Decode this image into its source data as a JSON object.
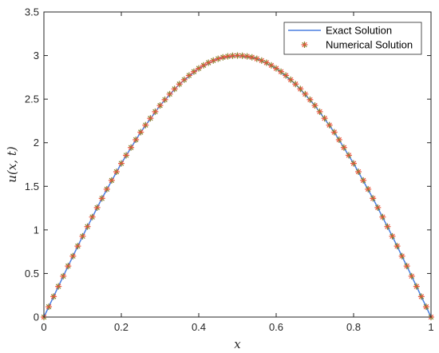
{
  "chart_data": {
    "type": "line",
    "xlabel": "x",
    "ylabel": "u(x, t)",
    "xlim": [
      0,
      1
    ],
    "ylim": [
      0,
      3.5
    ],
    "x_ticks": [
      "0",
      "0.2",
      "0.4",
      "0.6",
      "0.8",
      "1"
    ],
    "y_ticks": [
      "0",
      "0.5",
      "1",
      "1.5",
      "2",
      "2.5",
      "3",
      "3.5"
    ],
    "grid": false,
    "legend_position": "top-right",
    "series": [
      {
        "name": "Exact Solution",
        "style": "line",
        "color": "#4a7fe0",
        "x": [
          0,
          0.05,
          0.1,
          0.15,
          0.2,
          0.25,
          0.3,
          0.35,
          0.4,
          0.45,
          0.5,
          0.55,
          0.6,
          0.65,
          0.7,
          0.75,
          0.8,
          0.85,
          0.9,
          0.95,
          1
        ],
        "y": [
          0,
          0.469,
          0.927,
          1.362,
          1.763,
          2.121,
          2.427,
          2.673,
          2.853,
          2.963,
          3.0,
          2.963,
          2.853,
          2.673,
          2.427,
          2.121,
          1.763,
          1.362,
          0.927,
          0.469,
          0
        ]
      },
      {
        "name": "Numerical Solution",
        "style": "asterisk-markers",
        "color": "#8b7d2a",
        "accent_color": "#e8543c",
        "x": [
          0,
          0.0125,
          0.025,
          0.0375,
          0.05,
          0.0625,
          0.075,
          0.0875,
          0.1,
          0.1125,
          0.125,
          0.1375,
          0.15,
          0.1625,
          0.175,
          0.1875,
          0.2,
          0.2125,
          0.225,
          0.2375,
          0.25,
          0.2625,
          0.275,
          0.2875,
          0.3,
          0.3125,
          0.325,
          0.3375,
          0.35,
          0.3625,
          0.375,
          0.3875,
          0.4,
          0.4125,
          0.425,
          0.4375,
          0.45,
          0.4625,
          0.475,
          0.4875,
          0.5,
          0.5125,
          0.525,
          0.5375,
          0.55,
          0.5625,
          0.575,
          0.5875,
          0.6,
          0.6125,
          0.625,
          0.6375,
          0.65,
          0.6625,
          0.675,
          0.6875,
          0.7,
          0.7125,
          0.725,
          0.7375,
          0.75,
          0.7625,
          0.775,
          0.7875,
          0.8,
          0.8125,
          0.825,
          0.8375,
          0.85,
          0.8625,
          0.875,
          0.8875,
          0.9,
          0.9125,
          0.925,
          0.9375,
          0.95,
          0.9625,
          0.975,
          0.9875,
          1
        ],
        "y": [
          0,
          0.118,
          0.235,
          0.352,
          0.469,
          0.585,
          0.699,
          0.814,
          0.927,
          1.038,
          1.148,
          1.256,
          1.362,
          1.467,
          1.568,
          1.667,
          1.763,
          1.856,
          1.945,
          2.034,
          2.121,
          2.202,
          2.28,
          2.356,
          2.427,
          2.494,
          2.558,
          2.617,
          2.673,
          2.723,
          2.772,
          2.815,
          2.853,
          2.888,
          2.918,
          2.943,
          2.963,
          2.98,
          2.991,
          2.998,
          3.0,
          2.998,
          2.991,
          2.98,
          2.963,
          2.943,
          2.918,
          2.888,
          2.853,
          2.815,
          2.772,
          2.723,
          2.673,
          2.617,
          2.558,
          2.494,
          2.427,
          2.356,
          2.28,
          2.202,
          2.121,
          2.034,
          1.945,
          1.856,
          1.763,
          1.667,
          1.568,
          1.467,
          1.362,
          1.256,
          1.148,
          1.038,
          0.927,
          0.814,
          0.699,
          0.585,
          0.469,
          0.352,
          0.235,
          0.118,
          0
        ]
      }
    ]
  }
}
